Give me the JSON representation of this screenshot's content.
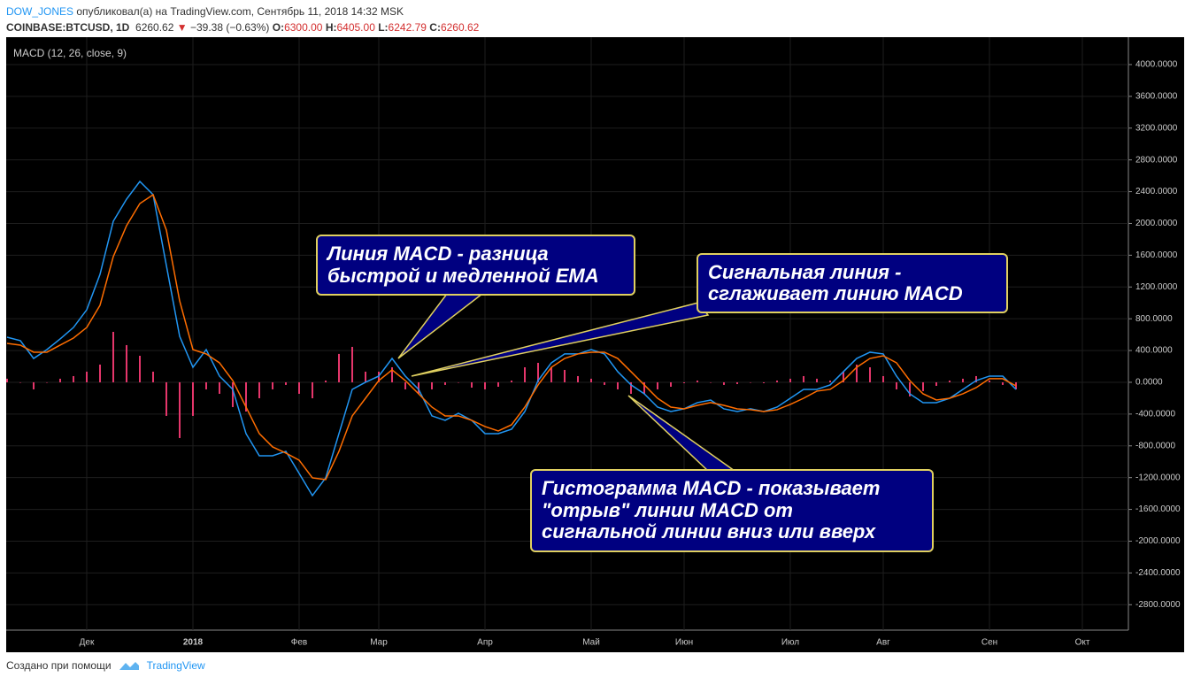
{
  "header": {
    "author": "DOW_JONES",
    "published": "опубликовал(а) на TradingView.com, Сентябрь 11, 2018 14:32 MSK",
    "symbol": "COINBASE:BTCUSD, 1D",
    "price": "6260.62",
    "change": "−39.38 (−0.63%)",
    "o_label": "O:",
    "open": "6300.00",
    "h_label": "H:",
    "high": "6405.00",
    "l_label": "L:",
    "low": "6242.79",
    "c_label": "C:",
    "close": "6260.62"
  },
  "footer": {
    "made_with": "Создано при помощи",
    "brand": "TradingView"
  },
  "annotations": [
    [
      "Линия MACD - разница",
      "быстрой и медленной EMA"
    ],
    [
      "Сигнальная линия -",
      "сглаживает линию MACD"
    ],
    [
      "Гистограмма MACD - показывает",
      "\"отрыв\" линии MACD от",
      "сигнальной линии вниз или вверх"
    ]
  ],
  "chart_data": {
    "type": "line",
    "title": "MACD (12, 26, close, 9)",
    "categories": [
      null,
      null,
      null,
      null,
      null,
      null,
      "Дек",
      null,
      null,
      null,
      null,
      null,
      null,
      null,
      "2018",
      null,
      null,
      null,
      null,
      null,
      null,
      null,
      "Фев",
      null,
      null,
      null,
      null,
      null,
      "Мар",
      null,
      null,
      null,
      null,
      null,
      null,
      null,
      "Апр",
      null,
      null,
      null,
      null,
      null,
      null,
      null,
      "Май",
      null,
      null,
      null,
      null,
      null,
      null,
      "Июн",
      null,
      null,
      null,
      null,
      null,
      null,
      null,
      "Июл",
      null,
      null,
      null,
      null,
      null,
      null,
      "Авг",
      null,
      null,
      null,
      null,
      null,
      null,
      null,
      "Сен",
      null,
      null,
      null,
      null,
      null,
      null,
      "Окт",
      null,
      null,
      null
    ],
    "series": [
      {
        "type": "bar",
        "color": "#e5366b",
        "values": [
          45,
          0,
          -89,
          0,
          45,
          78,
          134,
          223,
          635,
          468,
          334,
          134,
          -423,
          -702,
          -423,
          -89,
          -145,
          -312,
          -368,
          -201,
          -89,
          -33,
          -145,
          -201,
          22,
          357,
          446,
          134,
          134,
          189,
          -89,
          -145,
          -89,
          -33,
          0,
          -67,
          -89,
          -56,
          22,
          189,
          245,
          189,
          156,
          78,
          45,
          -33,
          -89,
          -145,
          -145,
          -89,
          -56,
          -11,
          22,
          0,
          -33,
          -22,
          0,
          -11,
          22,
          45,
          78,
          45,
          22,
          134,
          223,
          189,
          78,
          -89,
          -178,
          -111,
          -45,
          22,
          45,
          78,
          22,
          -33,
          -89,
          null,
          null,
          null,
          null,
          null,
          null,
          null,
          null
        ]
      },
      {
        "type": "line",
        "color": "#2196f3",
        "values": [
          568,
          524,
          300,
          412,
          546,
          690,
          913,
          1359,
          2027,
          2306,
          2529,
          2362,
          1470,
          579,
          189,
          412,
          78,
          -89,
          -646,
          -925,
          -925,
          -869,
          -1147,
          -1426,
          -1203,
          -646,
          -89,
          0,
          78,
          300,
          78,
          -89,
          -423,
          -479,
          -390,
          -479,
          -646,
          -646,
          -590,
          -368,
          22,
          245,
          357,
          357,
          412,
          357,
          134,
          -33,
          -145,
          -312,
          -368,
          -334,
          -256,
          -223,
          -334,
          -368,
          -334,
          -368,
          -312,
          -201,
          -89,
          -89,
          -33,
          134,
          300,
          379,
          357,
          78,
          -145,
          -256,
          -256,
          -201,
          -89,
          22,
          78,
          78,
          -89,
          null,
          null,
          null,
          null,
          null,
          null,
          null,
          null
        ]
      },
      {
        "type": "line",
        "color": "#ff6d00",
        "values": [
          490,
          468,
          379,
          379,
          468,
          557,
          690,
          969,
          1582,
          1972,
          2250,
          2362,
          1916,
          1025,
          412,
          357,
          245,
          22,
          -312,
          -646,
          -813,
          -891,
          -980,
          -1203,
          -1225,
          -869,
          -423,
          -201,
          22,
          156,
          22,
          -145,
          -312,
          -423,
          -423,
          -479,
          -557,
          -613,
          -535,
          -312,
          -33,
          189,
          300,
          357,
          379,
          379,
          300,
          134,
          -33,
          -201,
          -312,
          -334,
          -290,
          -256,
          -290,
          -334,
          -345,
          -368,
          -345,
          -278,
          -201,
          -111,
          -89,
          22,
          189,
          300,
          334,
          245,
          22,
          -145,
          -223,
          -201,
          -145,
          -67,
          45,
          45,
          -45,
          null,
          null,
          null,
          null,
          null,
          null,
          null,
          null
        ]
      }
    ],
    "ylim": [
      -3120,
      4345
    ],
    "yticks": [
      {
        "value": 4000,
        "label": "4000.0000"
      },
      {
        "value": 3600,
        "label": "3600.0000"
      },
      {
        "value": 3200,
        "label": "3200.0000"
      },
      {
        "value": 2800,
        "label": "2800.0000"
      },
      {
        "value": 2400,
        "label": "2400.0000"
      },
      {
        "value": 2000,
        "label": "2000.0000"
      },
      {
        "value": 1600,
        "label": "1600.0000"
      },
      {
        "value": 1200,
        "label": "1200.0000"
      },
      {
        "value": 800,
        "label": "800.0000"
      },
      {
        "value": 400,
        "label": "400.0000"
      },
      {
        "value": 0,
        "label": "0.0000"
      },
      {
        "value": -400,
        "label": "-400.0000"
      },
      {
        "value": -800,
        "label": "-800.0000"
      },
      {
        "value": -1200,
        "label": "-1200.0000"
      },
      {
        "value": -1600,
        "label": "-1600.0000"
      },
      {
        "value": -2000,
        "label": "-2000.0000"
      },
      {
        "value": -2400,
        "label": "-2400.0000"
      },
      {
        "value": -2800,
        "label": "-2800.0000"
      }
    ],
    "grid": true
  }
}
